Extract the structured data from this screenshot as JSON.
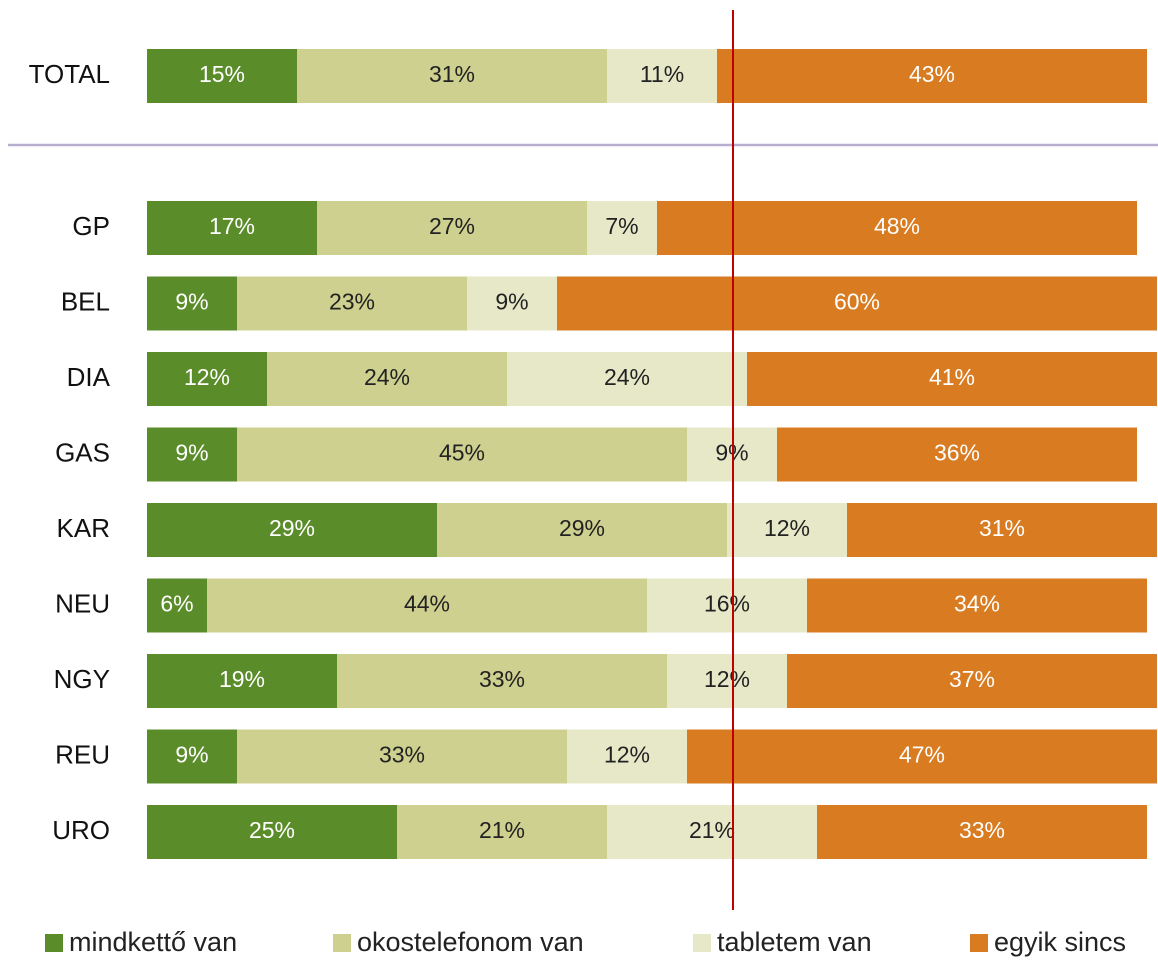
{
  "chart_data": {
    "type": "stacked-bar-horizontal",
    "categories": [
      "TOTAL",
      "GP",
      "BEL",
      "DIA",
      "GAS",
      "KAR",
      "NEU",
      "NGY",
      "REU",
      "URO"
    ],
    "xlim": [
      0,
      100
    ],
    "series": [
      {
        "name": "mindkettő van",
        "color": "#5b8c2a",
        "values": [
          15,
          17,
          9,
          12,
          9,
          29,
          6,
          19,
          9,
          25
        ],
        "value_labels": [
          "15%",
          "17%",
          "9%",
          "12%",
          "9%",
          "29%",
          "6%",
          "19%",
          "9%",
          "25%"
        ]
      },
      {
        "name": "okostelefonom van",
        "color": "#cdd08f",
        "values": [
          31,
          27,
          23,
          24,
          45,
          29,
          44,
          33,
          33,
          21
        ],
        "value_labels": [
          "31%",
          "27%",
          "23%",
          "24%",
          "45%",
          "29%",
          "44%",
          "33%",
          "33%",
          "21%"
        ]
      },
      {
        "name": "tabletem van",
        "color": "#e6e8c8",
        "values": [
          11,
          7,
          9,
          24,
          9,
          12,
          16,
          12,
          12,
          21
        ],
        "value_labels": [
          "11%",
          "7%",
          "9%",
          "24%",
          "9%",
          "12%",
          "16%",
          "12%",
          "12%",
          "21%"
        ]
      },
      {
        "name": "egyik sincs",
        "color": "#d97b20",
        "values": [
          43,
          48,
          60,
          41,
          36,
          31,
          34,
          37,
          47,
          33
        ],
        "value_labels": [
          "43%",
          "48%",
          "60%",
          "41%",
          "36%",
          "31%",
          "34%",
          "37%",
          "47%",
          "33%"
        ]
      }
    ]
  }
}
